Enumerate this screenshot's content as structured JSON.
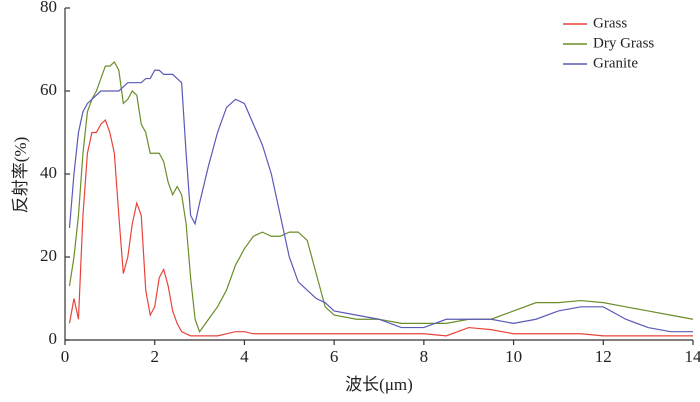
{
  "chart_data": {
    "type": "line",
    "xlabel": "波长(μm)",
    "ylabel": "反射率(%)",
    "x": [
      0.1,
      0.2,
      0.3,
      0.4,
      0.5,
      0.6,
      0.7,
      0.8,
      0.9,
      1.0,
      1.1,
      1.2,
      1.3,
      1.4,
      1.5,
      1.6,
      1.7,
      1.8,
      1.9,
      2.0,
      2.1,
      2.2,
      2.3,
      2.4,
      2.5,
      2.6,
      2.7,
      2.8,
      2.9,
      3.0,
      3.2,
      3.4,
      3.6,
      3.8,
      4.0,
      4.2,
      4.4,
      4.6,
      4.8,
      5.0,
      5.2,
      5.4,
      5.6,
      5.8,
      6.0,
      6.5,
      7,
      7.5,
      8,
      8.5,
      9,
      9.5,
      10,
      10.5,
      11,
      11.5,
      12,
      12.5,
      13,
      13.5,
      14
    ],
    "series": [
      {
        "name": "Grass",
        "color": "#e8443a",
        "values": [
          4,
          10,
          5,
          30,
          45,
          50,
          50,
          52,
          53,
          50,
          45,
          30,
          16,
          20,
          28,
          33,
          30,
          12,
          6,
          8,
          15,
          17,
          13,
          7,
          4,
          2,
          1.5,
          1,
          1,
          1,
          1,
          1,
          1.5,
          2,
          2,
          1.5,
          1.5,
          1.5,
          1.5,
          1.5,
          1.5,
          1.5,
          1.5,
          1.5,
          1.5,
          1.5,
          1.5,
          1.5,
          1.5,
          1,
          3,
          2.5,
          1.5,
          1.5,
          1.5,
          1.5,
          1,
          1,
          1,
          1,
          1
        ]
      },
      {
        "name": "Dry Grass",
        "color": "#6a8e2a",
        "values": [
          13,
          20,
          30,
          45,
          55,
          58,
          60,
          63,
          66,
          66,
          67,
          65,
          57,
          58,
          60,
          59,
          52,
          50,
          45,
          45,
          45,
          43,
          38,
          35,
          37,
          35,
          28,
          15,
          5,
          2,
          5,
          8,
          12,
          18,
          22,
          25,
          26,
          25,
          25,
          26,
          26,
          24,
          16,
          8,
          6,
          5,
          5,
          4,
          4,
          4,
          5,
          5,
          7,
          9,
          9,
          9.5,
          9,
          8,
          7,
          6,
          5
        ]
      },
      {
        "name": "Granite",
        "color": "#5a5ab8",
        "values": [
          27,
          40,
          50,
          55,
          57,
          58,
          59,
          60,
          60,
          60,
          60,
          60,
          61,
          62,
          62,
          62,
          62,
          63,
          63,
          65,
          65,
          64,
          64,
          64,
          63,
          62,
          45,
          30,
          28,
          33,
          42,
          50,
          56,
          58,
          57,
          52,
          47,
          40,
          30,
          20,
          14,
          12,
          10,
          9,
          7,
          6,
          5,
          3,
          3,
          5,
          5,
          5,
          4,
          5,
          7,
          8,
          8,
          5,
          3,
          2,
          2
        ]
      }
    ],
    "xlim": [
      0,
      14
    ],
    "xticks": [
      0,
      2,
      4,
      6,
      8,
      10,
      12,
      14
    ],
    "ylim": [
      0,
      80
    ],
    "yticks": [
      0,
      20,
      40,
      60,
      80
    ],
    "legend": "upper right"
  }
}
